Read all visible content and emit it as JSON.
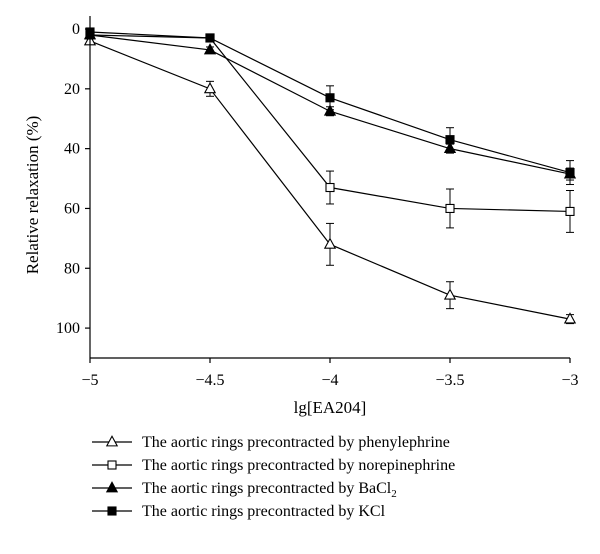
{
  "chart_data": {
    "type": "line",
    "xlabel": "lg[EA204]",
    "ylabel": "Relative relaxation (%)",
    "x": [
      -5,
      -4.5,
      -4,
      -3.5,
      -3
    ],
    "x_tick_labels": [
      "−5",
      "−4.5",
      "−4",
      "−3.5",
      "−3"
    ],
    "xlim": [
      -5,
      -3
    ],
    "ylim": [
      0,
      110
    ],
    "y_inverted": true,
    "y_ticks": [
      0,
      20,
      40,
      60,
      80,
      100
    ],
    "y_tick_labels": [
      "0",
      "20",
      "40",
      "60",
      "80",
      "100"
    ],
    "grid": false,
    "legend_position": "bottom",
    "series": [
      {
        "name": "The aortic rings precontracted by phenylephrine",
        "marker": "open-triangle",
        "values": [
          4,
          20,
          72,
          89,
          97
        ],
        "errors": [
          1,
          2.5,
          7,
          4.5,
          1.5
        ]
      },
      {
        "name": "The aortic rings precontracted by norepinephrine",
        "marker": "open-square",
        "values": [
          2,
          3,
          53,
          60,
          61
        ],
        "errors": [
          0.5,
          1,
          5.5,
          6.5,
          7
        ]
      },
      {
        "name": "The aortic rings precontracted by BaCl",
        "name_subscript": "2",
        "marker": "filled-triangle",
        "values": [
          2,
          7,
          27.5,
          40,
          48.5
        ],
        "errors": [
          0.5,
          1,
          1.5,
          1.5,
          2
        ]
      },
      {
        "name": "The aortic rings precontracted by KCl",
        "marker": "filled-square",
        "values": [
          1,
          3,
          23,
          37,
          48
        ],
        "errors": [
          0.5,
          1,
          4,
          4,
          4
        ]
      }
    ]
  }
}
